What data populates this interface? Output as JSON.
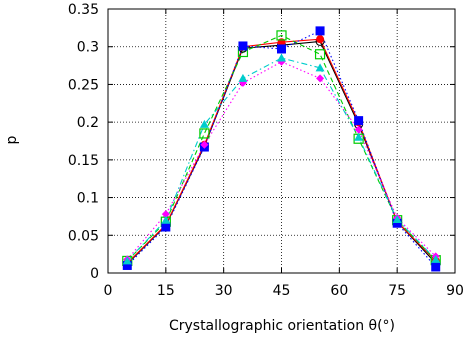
{
  "chart_data": {
    "type": "line",
    "xlabel": "Crystallographic orientation θ(°)",
    "ylabel": "p",
    "xlim": [
      0,
      90
    ],
    "ylim": [
      0,
      0.35
    ],
    "xticks": [
      0,
      15,
      30,
      45,
      60,
      75,
      90
    ],
    "yticks": [
      0,
      0.05,
      0.1,
      0.15,
      0.2,
      0.25,
      0.3,
      0.35
    ],
    "xtick_labels": [
      "0",
      "15",
      "30",
      "45",
      "60",
      "75",
      "90"
    ],
    "ytick_labels": [
      "0",
      "0.05",
      "0.1",
      "0.15",
      "0.2",
      "0.25",
      "0.3",
      "0.35"
    ],
    "grid": true,
    "x": [
      5,
      15,
      25,
      35,
      45,
      55,
      65,
      75,
      85
    ],
    "series": [
      {
        "color": "#000000",
        "marker": "circle-open",
        "dash": "solid",
        "values": [
          0.012,
          0.063,
          0.168,
          0.298,
          0.302,
          0.307,
          0.197,
          0.068,
          0.013
        ]
      },
      {
        "color": "#ff0000",
        "marker": "circle",
        "dash": "solid",
        "values": [
          0.013,
          0.064,
          0.17,
          0.3,
          0.306,
          0.31,
          0.2,
          0.068,
          0.016
        ]
      },
      {
        "color": "#00cc00",
        "marker": "square-open",
        "dash": "dashed",
        "values": [
          0.016,
          0.068,
          0.185,
          0.293,
          0.315,
          0.29,
          0.178,
          0.07,
          0.017
        ]
      },
      {
        "color": "#0000ff",
        "marker": "square",
        "dash": "dotted",
        "values": [
          0.01,
          0.061,
          0.167,
          0.301,
          0.297,
          0.321,
          0.202,
          0.066,
          0.008
        ]
      },
      {
        "color": "#ff00ff",
        "marker": "diamond",
        "dash": "dotted",
        "values": [
          0.018,
          0.078,
          0.17,
          0.252,
          0.28,
          0.258,
          0.19,
          0.073,
          0.022
        ]
      },
      {
        "color": "#00cccc",
        "marker": "triangle",
        "dash": "dashdot",
        "values": [
          0.016,
          0.07,
          0.197,
          0.258,
          0.285,
          0.272,
          0.18,
          0.071,
          0.018
        ]
      }
    ]
  }
}
